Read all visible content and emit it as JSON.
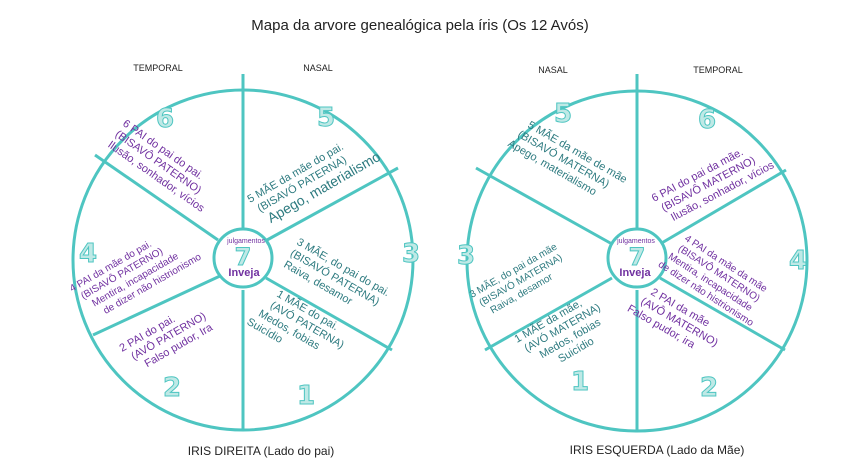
{
  "title": "Mapa da arvore genealógica pela íris (Os 12 Avós)",
  "colors": {
    "ring": "#4ec5c1",
    "purple": "#7030a0",
    "teal": "#2e7b80",
    "number_fill": "#bfe9e6"
  },
  "right_iris": {
    "caption": "IRIS DIREITA (Lado do pai)",
    "label_left": "TEMPORAL",
    "label_right": "NASAL",
    "center": {
      "small": "julgamentos",
      "number": "7",
      "word": "Inveja"
    },
    "sectors": [
      {
        "number": "6",
        "lines": [
          "6 PAI do pai do pai.",
          "(BISAVÔ PATERNO)",
          "Ilusão, sonhador, vícios"
        ]
      },
      {
        "number": "5",
        "lines": [
          "5 MÃE da mãe do pai.",
          "(BISAVÓ PATERNA)",
          "Apego, materialismo"
        ]
      },
      {
        "number": "3",
        "lines": [
          "3 MÃE, do pai  do pai.",
          "(BISAVÓ PATERNA)",
          "Raiva, desamor"
        ]
      },
      {
        "number": "1",
        "lines": [
          "1 MÃE do pai.",
          "(AVÓ PATERNA)",
          "Medos, fobias",
          "Suicídio"
        ]
      },
      {
        "number": "2",
        "lines": [
          "2 PAI do pai.",
          "(AVÔ PATERNO)",
          "Falso pudor, Ira"
        ]
      },
      {
        "number": "4",
        "lines": [
          "4 PAI da mãe do pai.",
          "(BISAVÔ PATERNO)",
          "Mentira, incapacidade",
          "de dizer não histrionismo"
        ]
      }
    ]
  },
  "left_iris": {
    "caption": "IRIS ESQUERDA (Lado da Mãe)",
    "label_left": "NASAL",
    "label_right": "TEMPORAL",
    "center": {
      "small": "julgamentos",
      "number": "7",
      "word": "Inveja"
    },
    "sectors": [
      {
        "number": "5",
        "lines": [
          "5 MÃE da mãe de mãe",
          "(BISAVÓ MATERNA)",
          "Apego, materialismo"
        ]
      },
      {
        "number": "6",
        "lines": [
          "6 PAI do pai da mãe.",
          "(BISAVÔ MATERNO)",
          "Ilusão, sonhador, vícios"
        ]
      },
      {
        "number": "4",
        "lines": [
          "4 PAI da mãe da mãe",
          "(BISAVÔ MATERNO)",
          "Mentira, incapacidade",
          "de dizer não histrionismo"
        ]
      },
      {
        "number": "2",
        "lines": [
          "2 PAI da mãe",
          "(AVÔ MATERNO)",
          "Falso pudor, ira"
        ]
      },
      {
        "number": "1",
        "lines": [
          "1 MÃE da mãe,",
          "(AVÓ MATERNA)",
          "Medos, fobias",
          "Suicídio"
        ]
      },
      {
        "number": "3",
        "lines": [
          "3 MÃE, do pai  da mãe",
          "(BISAVÓ MATERNA)",
          "Raiva, desamor"
        ]
      }
    ]
  }
}
